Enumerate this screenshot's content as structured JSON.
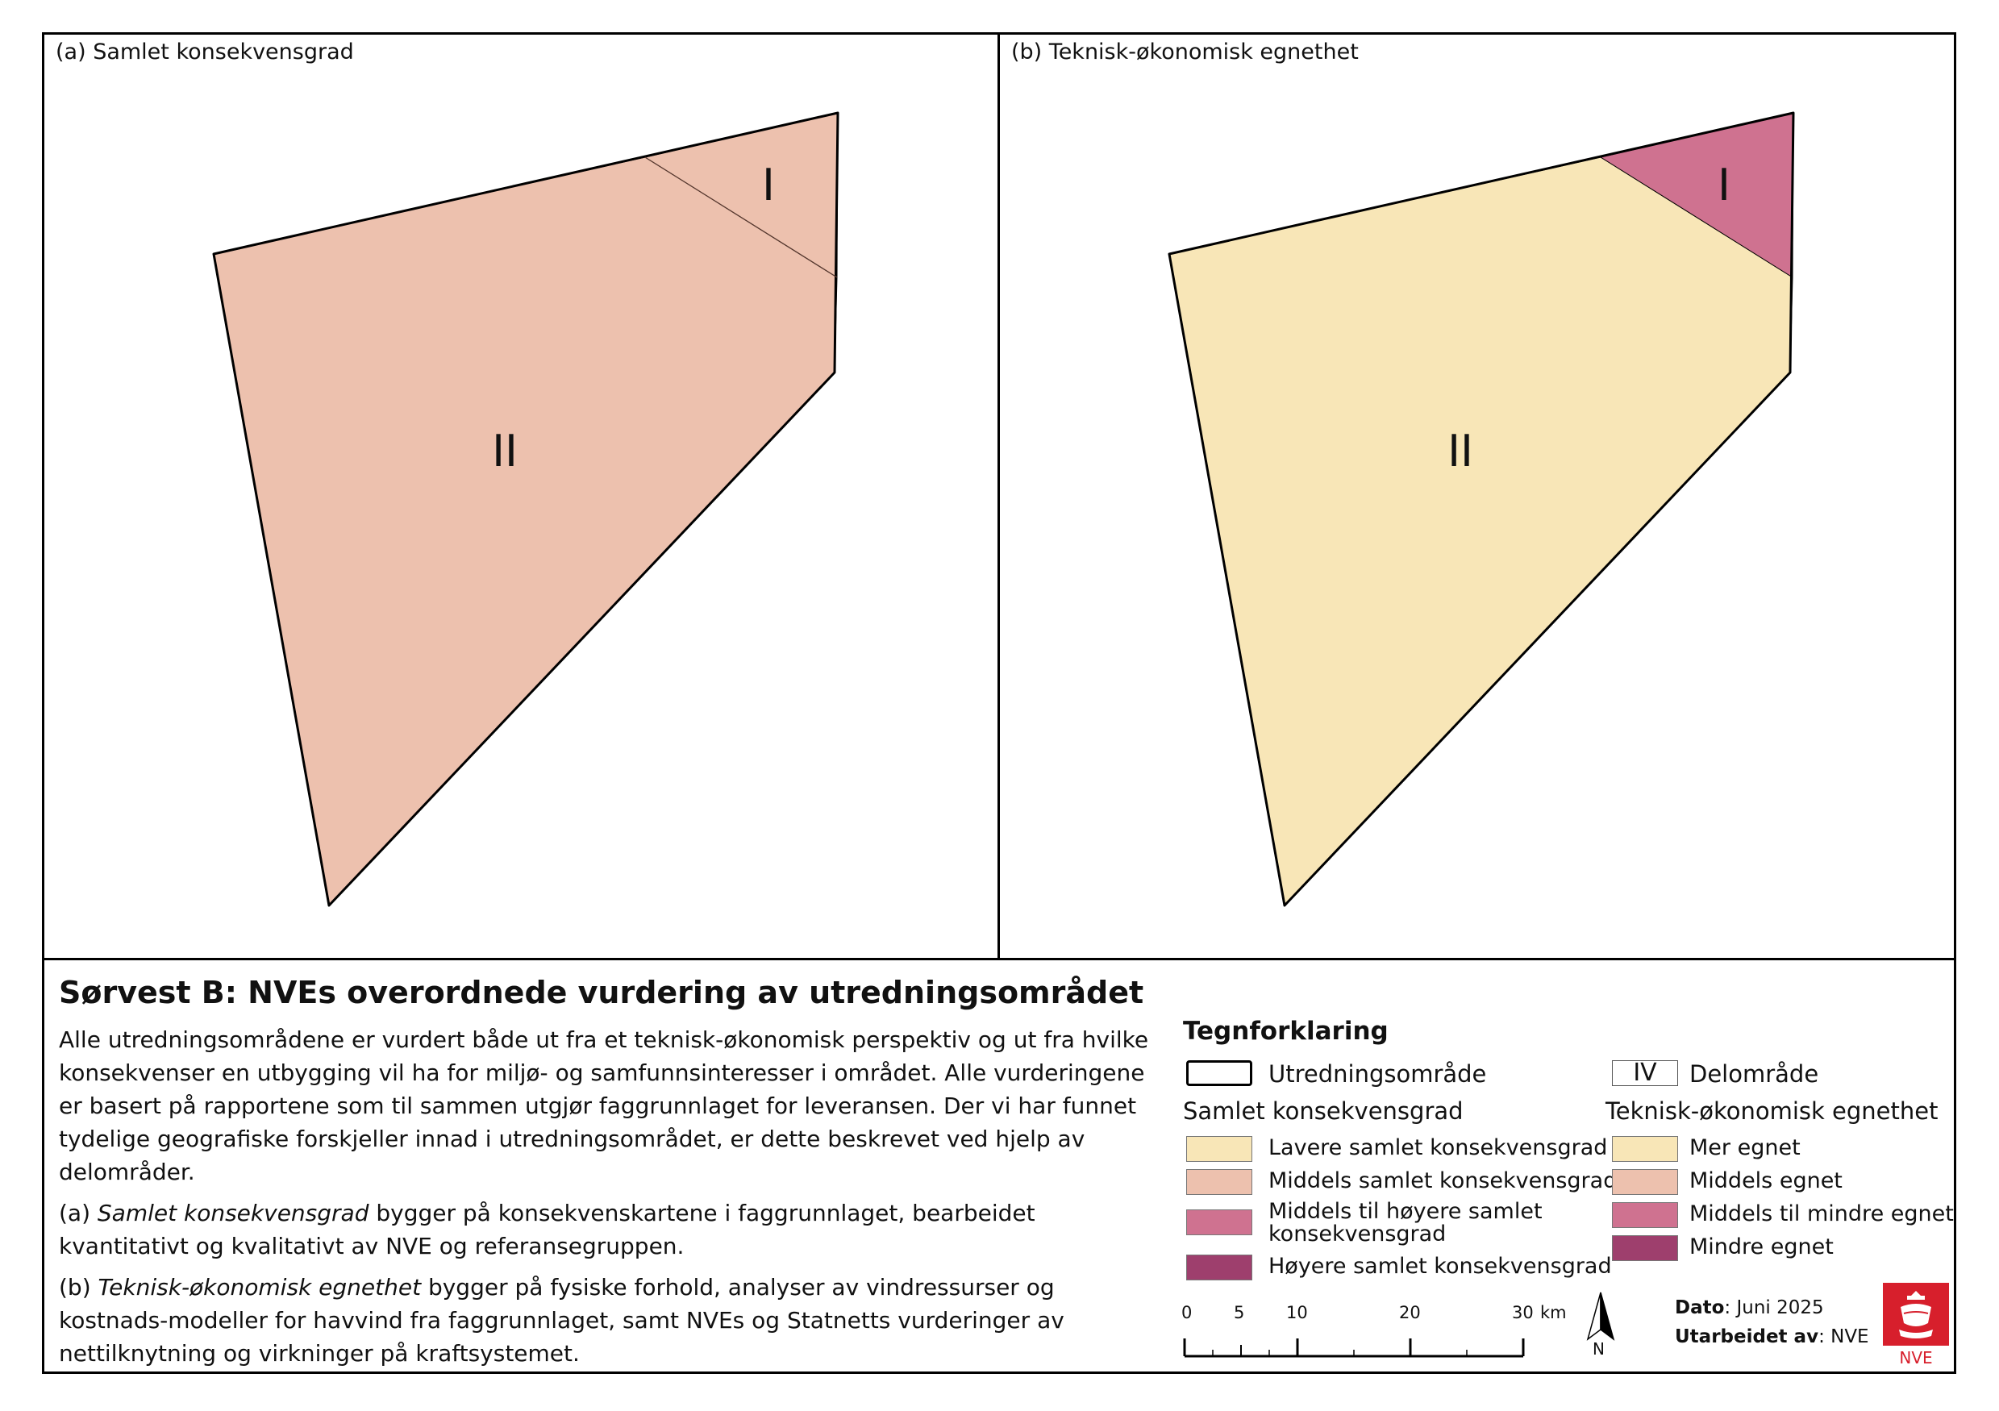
{
  "panels": {
    "a": {
      "title": "(a) Samlet konsekvensgrad",
      "regions": [
        {
          "id": "I",
          "label": "I",
          "class": "Middels samlet konsekvensgrad",
          "color": "#edc1ae"
        },
        {
          "id": "II",
          "label": "II",
          "class": "Middels samlet konsekvensgrad",
          "color": "#edc1ae"
        }
      ]
    },
    "b": {
      "title": "(b) Teknisk-økonomisk egnethet",
      "regions": [
        {
          "id": "I",
          "label": "I",
          "class": "Middels til mindre egnet",
          "color": "#cf7290"
        },
        {
          "id": "II",
          "label": "II",
          "class": "Mer egnet",
          "color": "#f8e6b7"
        }
      ]
    }
  },
  "text": {
    "title": "Sørvest B: NVEs overordnede vurdering av utredningsområdet",
    "para1": "Alle utredningsområdene er vurdert både ut fra et teknisk-økonomisk perspektiv og ut fra hvilke konsekvenser en utbygging vil ha for miljø- og samfunnsinteresser i området. Alle vurderingene er basert på rapportene som til sammen utgjør faggrunnlaget for leveransen. Der vi har funnet tydelige geografiske forskjeller innad i utredningsområdet, er dette beskrevet ved hjelp av delområder.",
    "para2_prefix": "(a) ",
    "para2_em": "Samlet konsekvensgrad",
    "para2_rest": " bygger på konsekvenskartene i faggrunnlaget, bearbeidet kvantitativt og kvalitativt av NVE og referansegruppen.",
    "para3_prefix": "(b) ",
    "para3_em": "Teknisk-økonomisk egnethet",
    "para3_rest": " bygger på fysiske forhold, analyser av vindressurser og kostnads-modeller for havvind fra faggrunnlaget, samt NVEs og Statnetts vurderinger av nettilknytning og virkninger på kraftsystemet."
  },
  "legend": {
    "title": "Tegnforklaring",
    "utredning": "Utredningsområde",
    "delomrade_sym": "IV",
    "delomrade": "Delområde",
    "samlet_header": "Samlet konsekvensgrad",
    "samlet_items": [
      {
        "label": "Lavere samlet konsekvensgrad",
        "color": "#f8e6b7"
      },
      {
        "label": "Middels samlet konsekvensgrad",
        "color": "#edc1ae"
      },
      {
        "label": "Middels til høyere samlet konsekvensgrad",
        "color": "#cf7290"
      },
      {
        "label": "Høyere samlet konsekvensgrad",
        "color": "#9e3f6d"
      }
    ],
    "teknisk_header": "Teknisk-økonomisk egnethet",
    "teknisk_items": [
      {
        "label": "Mer egnet",
        "color": "#f8e6b7"
      },
      {
        "label": "Middels egnet",
        "color": "#edc1ae"
      },
      {
        "label": "Middels til mindre egnet",
        "color": "#cf7290"
      },
      {
        "label": "Mindre egnet",
        "color": "#9e3f6d"
      }
    ]
  },
  "scale": {
    "ticks": [
      "0",
      "5",
      "10",
      "20",
      "30"
    ],
    "unit": "km"
  },
  "north": "N",
  "meta": {
    "dato_label": "Dato",
    "dato_value": ": Juni 2025",
    "utarbeidet_label": "Utarbeidet av",
    "utarbeidet_value": ": NVE"
  },
  "logo": {
    "text": "NVE",
    "color": "#d71f2c"
  }
}
